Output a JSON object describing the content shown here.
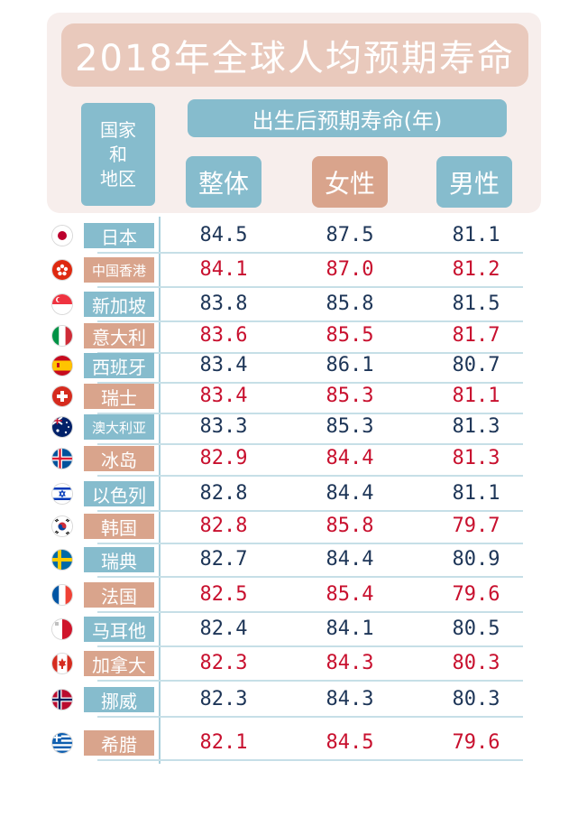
{
  "title": "2018年全球人均预期寿命",
  "header": {
    "region_lines": [
      "国家",
      "和",
      "地区"
    ],
    "life_expectancy": "出生后预期寿命(年)",
    "columns": [
      "整体",
      "女性",
      "男性"
    ]
  },
  "rows": [
    {
      "name": "日本",
      "flag": "japan-flag-icon",
      "overall": "84.5",
      "female": "87.5",
      "male": "81.1"
    },
    {
      "name": "中国香港",
      "flag": "hongkong-flag-icon",
      "overall": "84.1",
      "female": "87.0",
      "male": "81.2"
    },
    {
      "name": "新加坡",
      "flag": "singapore-flag-icon",
      "overall": "83.8",
      "female": "85.8",
      "male": "81.5"
    },
    {
      "name": "意大利",
      "flag": "italy-flag-icon",
      "overall": "83.6",
      "female": "85.5",
      "male": "81.7"
    },
    {
      "name": "西班牙",
      "flag": "spain-flag-icon",
      "overall": "83.4",
      "female": "86.1",
      "male": "80.7"
    },
    {
      "name": "瑞士",
      "flag": "switzerland-flag-icon",
      "overall": "83.4",
      "female": "85.3",
      "male": "81.1"
    },
    {
      "name": "澳大利亚",
      "flag": "australia-flag-icon",
      "overall": "83.3",
      "female": "85.3",
      "male": "81.3"
    },
    {
      "name": "冰岛",
      "flag": "iceland-flag-icon",
      "overall": "82.9",
      "female": "84.4",
      "male": "81.3"
    },
    {
      "name": "以色列",
      "flag": "israel-flag-icon",
      "overall": "82.8",
      "female": "84.4",
      "male": "81.1"
    },
    {
      "name": "韩国",
      "flag": "korea-flag-icon",
      "overall": "82.8",
      "female": "85.8",
      "male": "79.7"
    },
    {
      "name": "瑞典",
      "flag": "sweden-flag-icon",
      "overall": "82.7",
      "female": "84.4",
      "male": "80.9"
    },
    {
      "name": "法国",
      "flag": "france-flag-icon",
      "overall": "82.5",
      "female": "85.4",
      "male": "79.6"
    },
    {
      "name": "马耳他",
      "flag": "malta-flag-icon",
      "overall": "82.4",
      "female": "84.1",
      "male": "80.5"
    },
    {
      "name": "加拿大",
      "flag": "canada-flag-icon",
      "overall": "82.3",
      "female": "84.3",
      "male": "80.3"
    },
    {
      "name": "挪威",
      "flag": "norway-flag-icon",
      "overall": "82.3",
      "female": "84.3",
      "male": "80.3"
    },
    {
      "name": "希腊",
      "flag": "greece-flag-icon",
      "overall": "82.1",
      "female": "84.5",
      "male": "79.6"
    }
  ],
  "colors": {
    "blue": "#86bccd",
    "peach": "#d9a48c",
    "title_bg": "#e9c9bc",
    "panel_bg": "#f7eeec",
    "dark_text": "#1d3557",
    "red_text": "#c8102e"
  }
}
